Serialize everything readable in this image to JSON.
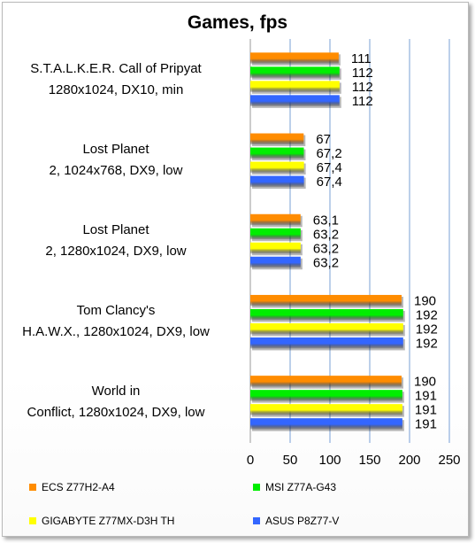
{
  "chart_data": {
    "type": "bar",
    "orientation": "horizontal",
    "title": "Games, fps",
    "xlim": [
      0,
      250
    ],
    "xticks": [
      0,
      50,
      100,
      150,
      200,
      250
    ],
    "grid": true,
    "legend_position": "bottom",
    "categories": [
      {
        "lines": [
          "S.T.A.L.K.E.R. Call of Pripyat",
          "1280x1024, DX10, min"
        ]
      },
      {
        "lines": [
          "Lost Planet",
          "2, 1024x768, DX9, low"
        ]
      },
      {
        "lines": [
          "Lost Planet",
          "2, 1280x1024, DX9, low"
        ]
      },
      {
        "lines": [
          "Tom Clancy's",
          "H.A.W.X., 1280x1024, DX9, low"
        ]
      },
      {
        "lines": [
          "World in",
          "Conflict, 1280x1024, DX9, low"
        ]
      }
    ],
    "series": [
      {
        "name": "ECS Z77H2-A4",
        "color": "#ff8c00",
        "values": [
          111,
          67,
          63.1,
          190,
          190
        ],
        "labels": [
          "111",
          "67",
          "63,1",
          "190",
          "190"
        ]
      },
      {
        "name": "MSI Z77A-G43",
        "color": "#00ee00",
        "values": [
          112,
          67.2,
          63.2,
          192,
          191
        ],
        "labels": [
          "112",
          "67,2",
          "63,2",
          "192",
          "191"
        ]
      },
      {
        "name": "GIGABYTE Z77MX-D3H TH",
        "color": "#ffff00",
        "values": [
          112,
          67.4,
          63.2,
          192,
          191
        ],
        "labels": [
          "112",
          "67,4",
          "63,2",
          "192",
          "191"
        ]
      },
      {
        "name": "ASUS P8Z77-V",
        "color": "#3366ff",
        "values": [
          112,
          67.4,
          63.2,
          192,
          191
        ],
        "labels": [
          "112",
          "67,4",
          "63,2",
          "192",
          "191"
        ]
      }
    ]
  }
}
